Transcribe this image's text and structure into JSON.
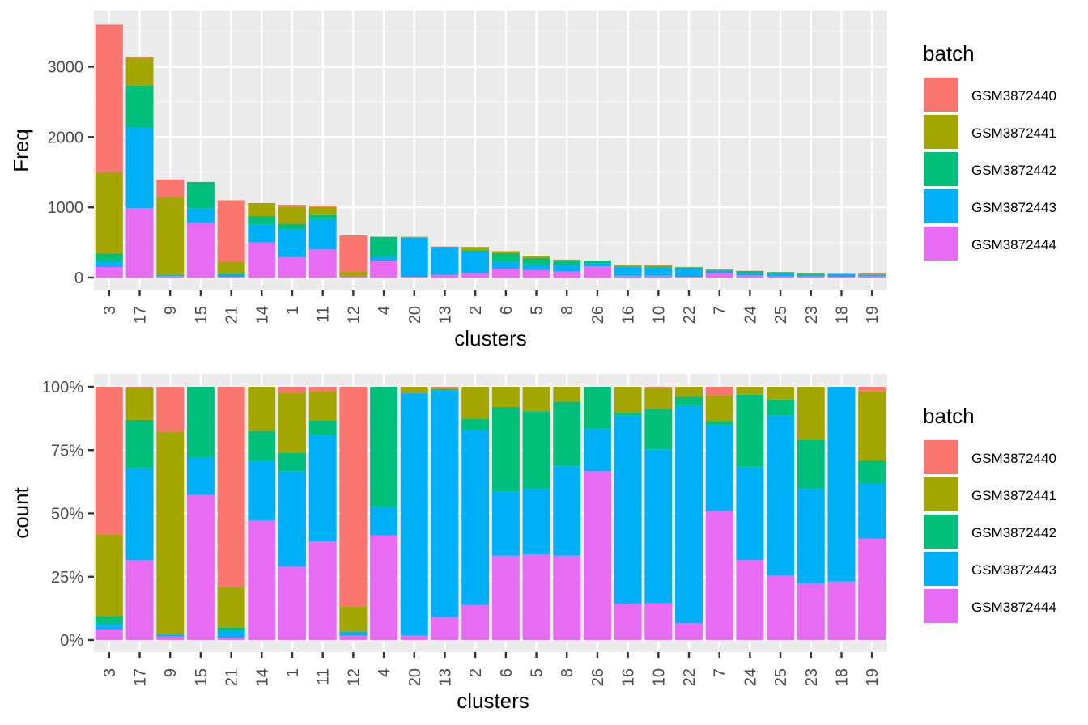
{
  "colors": {
    "GSM3872440": "#F8766D",
    "GSM3872441": "#A3A500",
    "GSM3872442": "#00BF7D",
    "GSM3872443": "#00B0F6",
    "GSM3872444": "#E76BF3",
    "panel_bg": "#EBEBEB",
    "grid_major": "#FFFFFF",
    "tick_text": "#4D4D4D"
  },
  "chart_data": [
    {
      "type": "bar",
      "stacked": true,
      "xlabel": "clusters",
      "ylabel": "Freq",
      "ylim": [
        0,
        3720
      ],
      "yticks": [
        0,
        1000,
        2000,
        3000
      ],
      "ytick_labels": [
        "0",
        "1000",
        "2000",
        "3000"
      ],
      "categories": [
        "3",
        "17",
        "9",
        "15",
        "21",
        "14",
        "1",
        "11",
        "12",
        "4",
        "20",
        "13",
        "2",
        "6",
        "5",
        "8",
        "26",
        "16",
        "10",
        "22",
        "7",
        "24",
        "25",
        "23",
        "18",
        "19"
      ],
      "legend": {
        "title": "batch",
        "position": "right"
      },
      "series": [
        {
          "name": "GSM3872444",
          "values": [
            150,
            990,
            20,
            780,
            10,
            500,
            300,
            400,
            10,
            240,
            10,
            40,
            60,
            125,
            105,
            85,
            160,
            25,
            25,
            10,
            60,
            30,
            20,
            15,
            12,
            22
          ]
        },
        {
          "name": "GSM3872443",
          "values": [
            80,
            1140,
            10,
            200,
            30,
            250,
            390,
            430,
            10,
            65,
            555,
            395,
            300,
            95,
            80,
            90,
            40,
            130,
            105,
            130,
            40,
            35,
            50,
            25,
            40,
            12
          ]
        },
        {
          "name": "GSM3872442",
          "values": [
            110,
            600,
            5,
            380,
            15,
            125,
            75,
            60,
            0,
            275,
            0,
            2,
            20,
            125,
            95,
            65,
            40,
            2,
            28,
            5,
            2,
            27,
            5,
            13,
            0,
            5
          ]
        },
        {
          "name": "GSM3872441",
          "values": [
            1160,
            390,
            1110,
            0,
            175,
            185,
            245,
            115,
            60,
            0,
            15,
            2,
            55,
            30,
            30,
            15,
            0,
            18,
            14,
            6,
            12,
            3,
            4,
            14,
            0,
            15
          ]
        },
        {
          "name": "GSM3872440",
          "values": [
            2100,
            20,
            250,
            0,
            870,
            0,
            25,
            20,
            520,
            0,
            0,
            2,
            0,
            0,
            0,
            0,
            0,
            0,
            1,
            0,
            4,
            0,
            0,
            0,
            0,
            1
          ]
        }
      ]
    },
    {
      "type": "bar",
      "stacked": true,
      "normalized": true,
      "xlabel": "clusters",
      "ylabel": "count",
      "ylim": [
        0,
        1.0
      ],
      "yticks": [
        0,
        0.25,
        0.5,
        0.75,
        1.0
      ],
      "ytick_labels": [
        "0%",
        "25%",
        "50%",
        "75%",
        "100%"
      ],
      "categories": [
        "3",
        "17",
        "9",
        "15",
        "21",
        "14",
        "1",
        "11",
        "12",
        "4",
        "20",
        "13",
        "2",
        "6",
        "5",
        "8",
        "26",
        "16",
        "10",
        "22",
        "7",
        "24",
        "25",
        "23",
        "18",
        "19"
      ],
      "legend": {
        "title": "batch",
        "position": "right"
      },
      "series": [
        {
          "name": "GSM3872444",
          "values": [
            150,
            990,
            20,
            780,
            10,
            500,
            300,
            400,
            10,
            240,
            10,
            40,
            60,
            125,
            105,
            85,
            160,
            25,
            25,
            10,
            60,
            30,
            20,
            15,
            12,
            22
          ]
        },
        {
          "name": "GSM3872443",
          "values": [
            80,
            1140,
            10,
            200,
            30,
            250,
            390,
            430,
            10,
            65,
            555,
            395,
            300,
            95,
            80,
            90,
            40,
            130,
            105,
            130,
            40,
            35,
            50,
            25,
            40,
            12
          ]
        },
        {
          "name": "GSM3872442",
          "values": [
            110,
            600,
            5,
            380,
            15,
            125,
            75,
            60,
            0,
            275,
            0,
            2,
            20,
            125,
            95,
            65,
            40,
            2,
            28,
            5,
            2,
            27,
            5,
            13,
            0,
            5
          ]
        },
        {
          "name": "GSM3872441",
          "values": [
            1160,
            390,
            1110,
            0,
            175,
            185,
            245,
            115,
            60,
            0,
            15,
            2,
            55,
            30,
            30,
            15,
            0,
            18,
            14,
            6,
            12,
            3,
            4,
            14,
            0,
            15
          ]
        },
        {
          "name": "GSM3872440",
          "values": [
            2100,
            20,
            250,
            0,
            870,
            0,
            25,
            20,
            520,
            0,
            0,
            2,
            0,
            0,
            0,
            0,
            0,
            0,
            1,
            0,
            4,
            0,
            0,
            0,
            0,
            1
          ]
        }
      ]
    }
  ]
}
